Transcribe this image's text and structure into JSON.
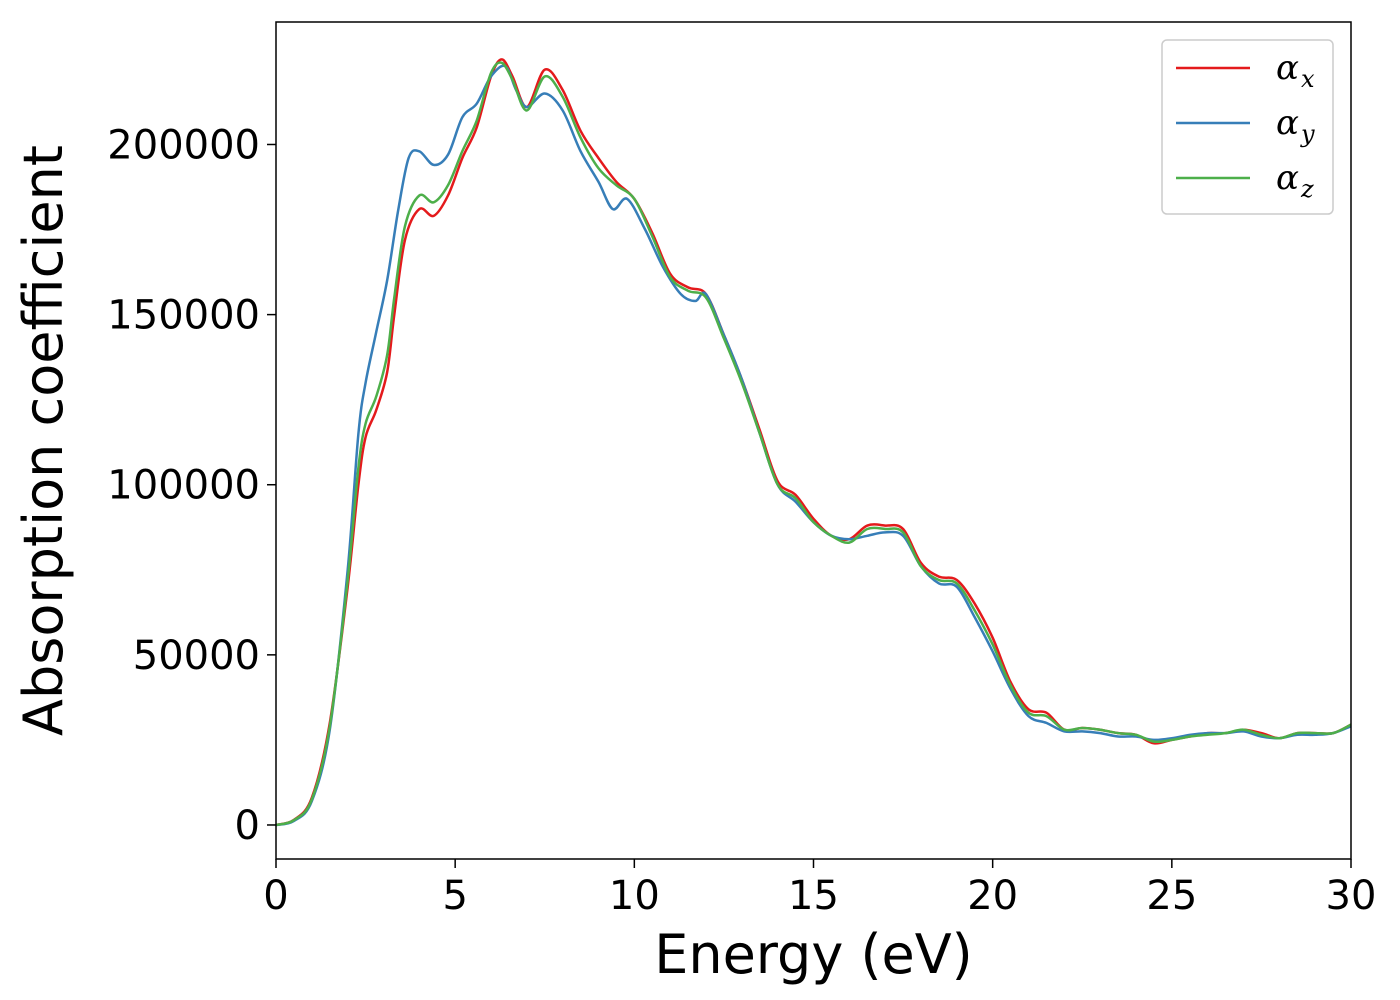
{
  "chart_data": {
    "type": "line",
    "title": "",
    "xlabel": "Energy (eV)",
    "ylabel": "Absorption coefficient",
    "xlim": [
      0,
      30
    ],
    "ylim": [
      -10000,
      236000
    ],
    "xticks": [
      0,
      5,
      10,
      15,
      20,
      25,
      30
    ],
    "xtick_labels": [
      "0",
      "5",
      "10",
      "15",
      "20",
      "25",
      "30"
    ],
    "yticks": [
      0,
      50000,
      100000,
      150000,
      200000
    ],
    "ytick_labels": [
      "0",
      "50000",
      "100000",
      "150000",
      "200000"
    ],
    "grid": false,
    "legend_position": "top-right",
    "series": [
      {
        "name": "α",
        "subscript": "x",
        "color": "#e41a1c",
        "points": [
          [
            0,
            0
          ],
          [
            0.5,
            1500
          ],
          [
            1,
            8000
          ],
          [
            1.5,
            30000
          ],
          [
            2,
            70000
          ],
          [
            2.3,
            100000
          ],
          [
            2.5,
            114000
          ],
          [
            2.8,
            122000
          ],
          [
            3.1,
            133000
          ],
          [
            3.3,
            150000
          ],
          [
            3.6,
            172000
          ],
          [
            4,
            181000
          ],
          [
            4.4,
            179000
          ],
          [
            4.8,
            185000
          ],
          [
            5.2,
            196000
          ],
          [
            5.6,
            205000
          ],
          [
            6,
            220000
          ],
          [
            6.3,
            225000
          ],
          [
            6.6,
            220000
          ],
          [
            7,
            211000
          ],
          [
            7.5,
            222000
          ],
          [
            8,
            216000
          ],
          [
            8.5,
            204000
          ],
          [
            9,
            196000
          ],
          [
            9.5,
            189000
          ],
          [
            10,
            184000
          ],
          [
            10.5,
            174000
          ],
          [
            11,
            162000
          ],
          [
            11.5,
            158000
          ],
          [
            12,
            156000
          ],
          [
            12.5,
            144000
          ],
          [
            13,
            131000
          ],
          [
            13.5,
            116000
          ],
          [
            14,
            101000
          ],
          [
            14.5,
            97000
          ],
          [
            15,
            90000
          ],
          [
            15.5,
            85000
          ],
          [
            16,
            84000
          ],
          [
            16.5,
            88000
          ],
          [
            17,
            88000
          ],
          [
            17.5,
            87000
          ],
          [
            18,
            77000
          ],
          [
            18.5,
            73000
          ],
          [
            19,
            72000
          ],
          [
            19.5,
            65000
          ],
          [
            20,
            55000
          ],
          [
            20.5,
            42000
          ],
          [
            21,
            34000
          ],
          [
            21.5,
            33000
          ],
          [
            22,
            28000
          ],
          [
            22.5,
            28500
          ],
          [
            23,
            28000
          ],
          [
            23.5,
            27000
          ],
          [
            24,
            26500
          ],
          [
            24.5,
            24000
          ],
          [
            25,
            25000
          ],
          [
            25.5,
            26000
          ],
          [
            26,
            27000
          ],
          [
            26.5,
            27000
          ],
          [
            27,
            28000
          ],
          [
            27.5,
            27000
          ],
          [
            28,
            25500
          ],
          [
            28.5,
            27000
          ],
          [
            29,
            27000
          ],
          [
            29.5,
            27000
          ],
          [
            30,
            29500
          ]
        ]
      },
      {
        "name": "α",
        "subscript": "y",
        "color": "#377eb8",
        "points": [
          [
            0,
            0
          ],
          [
            0.5,
            1200
          ],
          [
            1,
            7000
          ],
          [
            1.5,
            28000
          ],
          [
            2,
            75000
          ],
          [
            2.3,
            115000
          ],
          [
            2.5,
            130000
          ],
          [
            2.8,
            145000
          ],
          [
            3.1,
            160000
          ],
          [
            3.4,
            180000
          ],
          [
            3.7,
            196000
          ],
          [
            4,
            198000
          ],
          [
            4.4,
            194000
          ],
          [
            4.8,
            197000
          ],
          [
            5.2,
            208000
          ],
          [
            5.6,
            212000
          ],
          [
            6,
            220000
          ],
          [
            6.4,
            223000
          ],
          [
            6.7,
            216000
          ],
          [
            7,
            211000
          ],
          [
            7.5,
            215000
          ],
          [
            8,
            210000
          ],
          [
            8.5,
            198000
          ],
          [
            9,
            189000
          ],
          [
            9.4,
            181000
          ],
          [
            9.8,
            184000
          ],
          [
            10.3,
            175000
          ],
          [
            10.8,
            164000
          ],
          [
            11.3,
            156000
          ],
          [
            11.7,
            154000
          ],
          [
            12,
            156000
          ],
          [
            12.5,
            144000
          ],
          [
            13,
            131000
          ],
          [
            13.5,
            115000
          ],
          [
            14,
            100000
          ],
          [
            14.5,
            95000
          ],
          [
            15,
            89000
          ],
          [
            15.5,
            85000
          ],
          [
            16,
            84000
          ],
          [
            16.5,
            85000
          ],
          [
            17,
            86000
          ],
          [
            17.5,
            85000
          ],
          [
            18,
            76000
          ],
          [
            18.5,
            71000
          ],
          [
            19,
            70000
          ],
          [
            19.5,
            61000
          ],
          [
            20,
            51000
          ],
          [
            20.5,
            40000
          ],
          [
            21,
            32000
          ],
          [
            21.5,
            30000
          ],
          [
            22,
            27500
          ],
          [
            22.5,
            27500
          ],
          [
            23,
            27000
          ],
          [
            23.5,
            26000
          ],
          [
            24,
            26000
          ],
          [
            24.5,
            25000
          ],
          [
            25,
            25500
          ],
          [
            25.5,
            26500
          ],
          [
            26,
            27000
          ],
          [
            26.5,
            27000
          ],
          [
            27,
            27500
          ],
          [
            27.5,
            26000
          ],
          [
            28,
            25500
          ],
          [
            28.5,
            26500
          ],
          [
            29,
            26500
          ],
          [
            29.5,
            27000
          ],
          [
            30,
            29000
          ]
        ]
      },
      {
        "name": "α",
        "subscript": "z",
        "color": "#4daf4a",
        "points": [
          [
            0,
            0
          ],
          [
            0.5,
            1400
          ],
          [
            1,
            7500
          ],
          [
            1.5,
            29000
          ],
          [
            2,
            72000
          ],
          [
            2.3,
            105000
          ],
          [
            2.5,
            118000
          ],
          [
            2.8,
            126000
          ],
          [
            3.1,
            138000
          ],
          [
            3.3,
            155000
          ],
          [
            3.6,
            176000
          ],
          [
            4,
            185000
          ],
          [
            4.4,
            183000
          ],
          [
            4.8,
            188000
          ],
          [
            5.2,
            198000
          ],
          [
            5.6,
            207000
          ],
          [
            6,
            221000
          ],
          [
            6.3,
            224000
          ],
          [
            6.6,
            219000
          ],
          [
            7,
            210000
          ],
          [
            7.5,
            220000
          ],
          [
            8,
            214000
          ],
          [
            8.5,
            202000
          ],
          [
            9,
            193000
          ],
          [
            9.5,
            188000
          ],
          [
            10,
            184000
          ],
          [
            10.5,
            173000
          ],
          [
            11,
            161000
          ],
          [
            11.5,
            157000
          ],
          [
            12,
            155000
          ],
          [
            12.5,
            143000
          ],
          [
            13,
            130000
          ],
          [
            13.5,
            115000
          ],
          [
            14,
            100000
          ],
          [
            14.5,
            96000
          ],
          [
            15,
            89000
          ],
          [
            15.5,
            85000
          ],
          [
            16,
            83000
          ],
          [
            16.5,
            87000
          ],
          [
            17,
            87000
          ],
          [
            17.5,
            86000
          ],
          [
            18,
            76000
          ],
          [
            18.5,
            72000
          ],
          [
            19,
            71000
          ],
          [
            19.5,
            63000
          ],
          [
            20,
            53000
          ],
          [
            20.5,
            41000
          ],
          [
            21,
            33000
          ],
          [
            21.5,
            32000
          ],
          [
            22,
            28000
          ],
          [
            22.5,
            28500
          ],
          [
            23,
            28000
          ],
          [
            23.5,
            27000
          ],
          [
            24,
            26500
          ],
          [
            24.5,
            24500
          ],
          [
            25,
            25000
          ],
          [
            25.5,
            26000
          ],
          [
            26,
            26500
          ],
          [
            26.5,
            27000
          ],
          [
            27,
            28000
          ],
          [
            27.5,
            26500
          ],
          [
            28,
            25500
          ],
          [
            28.5,
            27000
          ],
          [
            29,
            27000
          ],
          [
            29.5,
            27000
          ],
          [
            30,
            29500
          ]
        ]
      }
    ]
  }
}
